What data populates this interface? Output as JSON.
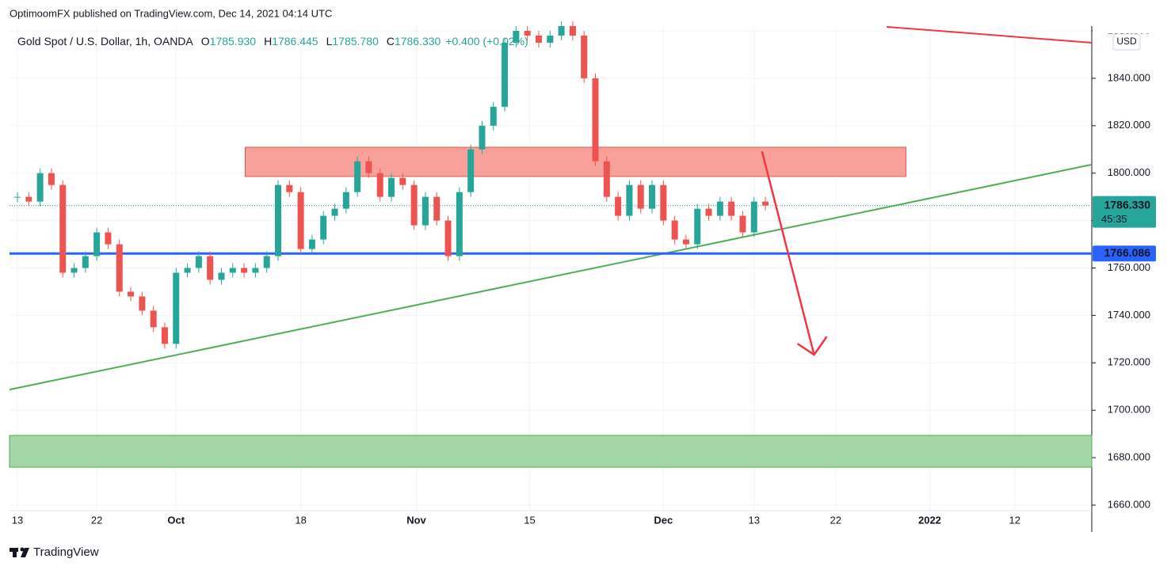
{
  "header": {
    "published": "OptimoomFX published on TradingView.com, Dec 14, 2021 04:14 UTC",
    "brand": "TradingView"
  },
  "legend": {
    "symbol": "Gold Spot / U.S. Dollar, 1h, OANDA",
    "open_label": "O",
    "open": "1785.930",
    "high_label": "H",
    "high": "1786.445",
    "low_label": "L",
    "low": "1785.780",
    "close_label": "C",
    "close": "1786.330",
    "change": "+0.400 (+0.02%)"
  },
  "chart_data": {
    "type": "candlestick",
    "x": [
      0,
      1,
      2,
      3,
      4,
      5,
      6,
      7,
      8,
      9,
      10,
      11,
      12,
      13,
      14,
      15,
      16,
      17,
      18,
      19,
      20,
      21,
      22,
      23,
      24,
      25,
      26,
      27,
      28,
      29,
      30,
      31,
      32,
      33,
      34,
      35,
      36,
      37,
      38,
      39,
      40,
      41,
      42,
      43,
      44,
      45,
      46,
      47,
      48,
      49,
      50,
      51,
      52,
      53,
      54,
      55,
      56,
      57,
      58,
      59,
      60,
      61,
      62,
      63,
      64,
      65,
      66
    ],
    "values": [
      1790,
      1788,
      1800,
      1795,
      1758,
      1760,
      1765,
      1775,
      1770,
      1750,
      1748,
      1742,
      1735,
      1728,
      1758,
      1760,
      1765,
      1755,
      1758,
      1760,
      1758,
      1760,
      1765,
      1795,
      1792,
      1768,
      1772,
      1782,
      1785,
      1792,
      1805,
      1800,
      1790,
      1798,
      1795,
      1778,
      1790,
      1780,
      1765,
      1792,
      1810,
      1820,
      1828,
      1855,
      1860,
      1858,
      1855,
      1858,
      1862,
      1858,
      1840,
      1805,
      1790,
      1782,
      1795,
      1785,
      1795,
      1780,
      1772,
      1770,
      1785,
      1782,
      1788,
      1782,
      1775,
      1788,
      1786.33
    ],
    "up_color": "#26a69a",
    "down_color": "#ef5350",
    "xlim": [
      -0.7,
      94.8
    ],
    "xticks": [
      {
        "value": 0,
        "label": "13"
      },
      {
        "value": 7,
        "label": "22"
      },
      {
        "value": 14,
        "label": "Oct"
      },
      {
        "value": 25,
        "label": "18"
      },
      {
        "value": 35.2,
        "label": "Nov"
      },
      {
        "value": 45.2,
        "label": "15"
      },
      {
        "value": 57,
        "label": "Dec"
      },
      {
        "value": 65,
        "label": "13"
      },
      {
        "value": 72.2,
        "label": "22"
      },
      {
        "value": 80.5,
        "label": "2022"
      },
      {
        "value": 88,
        "label": "12"
      }
    ],
    "ylim": [
      1656,
      1862
    ],
    "yticks": [
      {
        "value": 1660,
        "label": "1660.000"
      },
      {
        "value": 1680,
        "label": "1680.000"
      },
      {
        "value": 1700,
        "label": "1700.000"
      },
      {
        "value": 1720,
        "label": "1720.000"
      },
      {
        "value": 1740,
        "label": "1740.000"
      },
      {
        "value": 1760,
        "label": "1760.000"
      },
      {
        "value": 1780,
        "label": "1780.000"
      },
      {
        "value": 1800,
        "label": "1800.000"
      },
      {
        "value": 1820,
        "label": "1820.000"
      },
      {
        "value": 1840,
        "label": "1840.000"
      },
      {
        "value": 1860,
        "label": "1860.000"
      }
    ],
    "currency": "USD",
    "last_price": {
      "value": 1786.33,
      "label": "1786.330"
    },
    "countdown": "45:35",
    "level": {
      "value": 1766.086,
      "label": "1766.086",
      "color": "#2962ff"
    },
    "zones": [
      {
        "x": [
          20.1,
          78.4
        ],
        "y": [
          1798.6,
          1810.9
        ],
        "color": "#f7a19a",
        "stroke": "#e5534b"
      },
      {
        "x": [
          -0.7,
          94.8
        ],
        "y": [
          1676,
          1689.4
        ],
        "color": "#a5d6a7",
        "stroke": "#4caf50"
      }
    ],
    "trendlines": [
      {
        "x": [
          -0.7,
          94.8
        ],
        "y": [
          1708.7,
          1803.6
        ],
        "color": "#4caf50"
      },
      {
        "x": [
          76.7,
          94.8
        ],
        "y": [
          1861.7,
          1855
        ],
        "color": "#f23645"
      }
    ],
    "arrow": {
      "x": [
        65.7,
        70.3
      ],
      "y": [
        1809.2,
        1723.4
      ],
      "color": "#f23645"
    }
  }
}
